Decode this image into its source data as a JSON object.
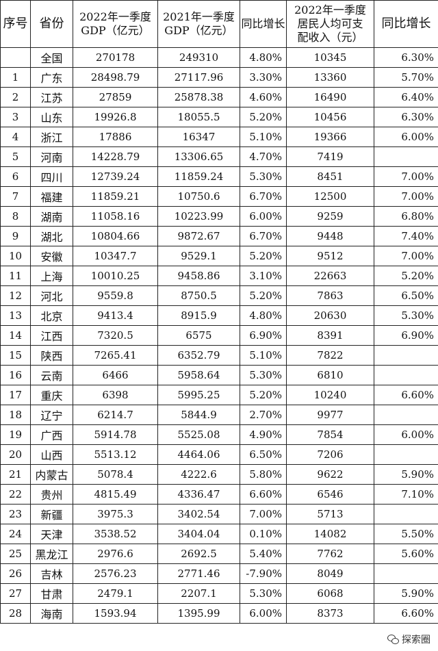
{
  "table": {
    "headers": {
      "rank": "序号",
      "province": "省份",
      "gdp2022_line1": "2022年一季度",
      "gdp2022_line2": "GDP（亿元）",
      "gdp2021_line1": "2021年一季度",
      "gdp2021_line2": "GDP（亿元）",
      "gdp_growth": "同比增长",
      "income_line1": "2022年一季度",
      "income_line2": "居民人均可支",
      "income_line3": "配收入（元）",
      "income_growth": "同比增长"
    },
    "rows": [
      {
        "rank": "",
        "province": "全国",
        "gdp2022": "270178",
        "gdp2021": "249310",
        "gdp_growth": "4.80%",
        "income": "10345",
        "income_growth": "6.30%"
      },
      {
        "rank": "1",
        "province": "广东",
        "gdp2022": "28498.79",
        "gdp2021": "27117.96",
        "gdp_growth": "3.30%",
        "income": "13360",
        "income_growth": "5.70%"
      },
      {
        "rank": "2",
        "province": "江苏",
        "gdp2022": "27859",
        "gdp2021": "25878.38",
        "gdp_growth": "4.60%",
        "income": "16490",
        "income_growth": "6.40%"
      },
      {
        "rank": "3",
        "province": "山东",
        "gdp2022": "19926.8",
        "gdp2021": "18055.5",
        "gdp_growth": "5.20%",
        "income": "10456",
        "income_growth": "6.30%"
      },
      {
        "rank": "4",
        "province": "浙江",
        "gdp2022": "17886",
        "gdp2021": "16347",
        "gdp_growth": "5.10%",
        "income": "19366",
        "income_growth": "6.00%"
      },
      {
        "rank": "5",
        "province": "河南",
        "gdp2022": "14228.79",
        "gdp2021": "13306.65",
        "gdp_growth": "4.70%",
        "income": "7419",
        "income_growth": ""
      },
      {
        "rank": "6",
        "province": "四川",
        "gdp2022": "12739.24",
        "gdp2021": "11859.24",
        "gdp_growth": "5.30%",
        "income": "8451",
        "income_growth": "7.00%"
      },
      {
        "rank": "7",
        "province": "福建",
        "gdp2022": "11859.21",
        "gdp2021": "10750.6",
        "gdp_growth": "6.70%",
        "income": "12500",
        "income_growth": "7.00%"
      },
      {
        "rank": "8",
        "province": "湖南",
        "gdp2022": "11058.16",
        "gdp2021": "10223.99",
        "gdp_growth": "6.00%",
        "income": "9259",
        "income_growth": "6.80%"
      },
      {
        "rank": "9",
        "province": "湖北",
        "gdp2022": "10804.66",
        "gdp2021": "9872.67",
        "gdp_growth": "6.70%",
        "income": "9448",
        "income_growth": "7.40%"
      },
      {
        "rank": "10",
        "province": "安徽",
        "gdp2022": "10347.7",
        "gdp2021": "9529.1",
        "gdp_growth": "5.20%",
        "income": "9512",
        "income_growth": "7.00%"
      },
      {
        "rank": "11",
        "province": "上海",
        "gdp2022": "10010.25",
        "gdp2021": "9458.86",
        "gdp_growth": "3.10%",
        "income": "22663",
        "income_growth": "5.20%"
      },
      {
        "rank": "12",
        "province": "河北",
        "gdp2022": "9559.8",
        "gdp2021": "8750.5",
        "gdp_growth": "5.20%",
        "income": "7863",
        "income_growth": "6.50%"
      },
      {
        "rank": "13",
        "province": "北京",
        "gdp2022": "9413.4",
        "gdp2021": "8915.9",
        "gdp_growth": "4.80%",
        "income": "20630",
        "income_growth": "5.30%"
      },
      {
        "rank": "14",
        "province": "江西",
        "gdp2022": "7320.5",
        "gdp2021": "6575",
        "gdp_growth": "6.90%",
        "income": "8391",
        "income_growth": "6.90%"
      },
      {
        "rank": "15",
        "province": "陕西",
        "gdp2022": "7265.41",
        "gdp2021": "6352.79",
        "gdp_growth": "5.10%",
        "income": "7822",
        "income_growth": ""
      },
      {
        "rank": "16",
        "province": "云南",
        "gdp2022": "6466",
        "gdp2021": "5958.64",
        "gdp_growth": "5.30%",
        "income": "6810",
        "income_growth": ""
      },
      {
        "rank": "17",
        "province": "重庆",
        "gdp2022": "6398",
        "gdp2021": "5995.25",
        "gdp_growth": "5.20%",
        "income": "10240",
        "income_growth": "6.60%"
      },
      {
        "rank": "18",
        "province": "辽宁",
        "gdp2022": "6214.7",
        "gdp2021": "5844.9",
        "gdp_growth": "2.70%",
        "income": "9977",
        "income_growth": ""
      },
      {
        "rank": "19",
        "province": "广西",
        "gdp2022": "5914.78",
        "gdp2021": "5525.08",
        "gdp_growth": "4.90%",
        "income": "7854",
        "income_growth": "6.00%"
      },
      {
        "rank": "20",
        "province": "山西",
        "gdp2022": "5513.12",
        "gdp2021": "4464.06",
        "gdp_growth": "6.50%",
        "income": "7206",
        "income_growth": ""
      },
      {
        "rank": "21",
        "province": "内蒙古",
        "gdp2022": "5078.4",
        "gdp2021": "4222.6",
        "gdp_growth": "5.80%",
        "income": "9622",
        "income_growth": "5.90%"
      },
      {
        "rank": "22",
        "province": "贵州",
        "gdp2022": "4815.49",
        "gdp2021": "4336.47",
        "gdp_growth": "6.60%",
        "income": "6546",
        "income_growth": "7.10%"
      },
      {
        "rank": "23",
        "province": "新疆",
        "gdp2022": "3975.3",
        "gdp2021": "3402.54",
        "gdp_growth": "7.00%",
        "income": "5713",
        "income_growth": ""
      },
      {
        "rank": "24",
        "province": "天津",
        "gdp2022": "3538.52",
        "gdp2021": "3404.04",
        "gdp_growth": "0.10%",
        "income": "14082",
        "income_growth": "5.50%"
      },
      {
        "rank": "25",
        "province": "黑龙江",
        "gdp2022": "2976.6",
        "gdp2021": "2692.5",
        "gdp_growth": "5.40%",
        "income": "7762",
        "income_growth": "5.60%"
      },
      {
        "rank": "26",
        "province": "吉林",
        "gdp2022": "2576.23",
        "gdp2021": "2771.46",
        "gdp_growth": "-7.90%",
        "income": "8049",
        "income_growth": ""
      },
      {
        "rank": "27",
        "province": "甘肃",
        "gdp2022": "2479.1",
        "gdp2021": "2207.1",
        "gdp_growth": "5.30%",
        "income": "6068",
        "income_growth": "5.90%"
      },
      {
        "rank": "28",
        "province": "海南",
        "gdp2022": "1593.94",
        "gdp2021": "1395.99",
        "gdp_growth": "6.00%",
        "income": "8373",
        "income_growth": "6.60%"
      }
    ]
  },
  "watermark": {
    "icon": "wechat-icon",
    "text": "探索圈"
  }
}
